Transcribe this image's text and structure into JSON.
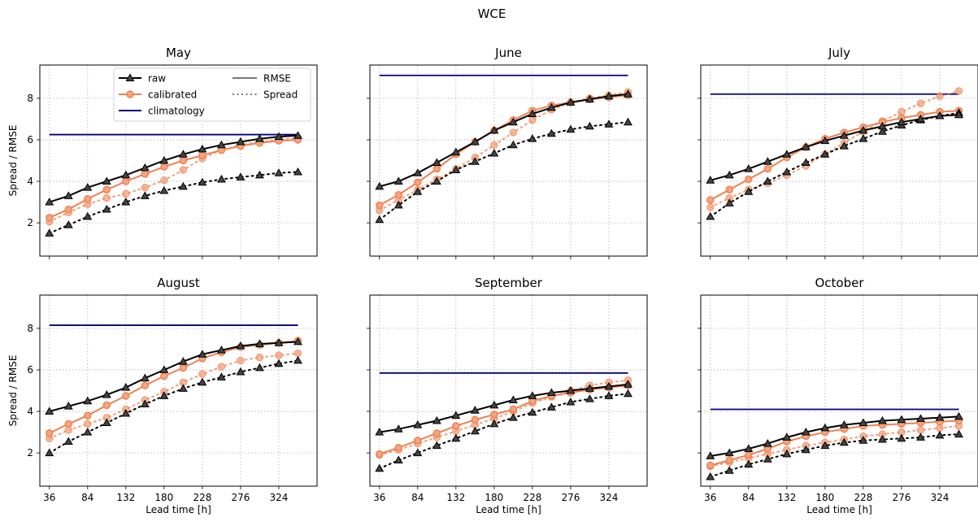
{
  "figure": {
    "suptitle": "WCE"
  },
  "chart_data": {
    "type": "line",
    "suptitle": "WCE",
    "xlabel": "Lead time [h]",
    "ylabel": "Spread / RMSE",
    "x_ticks": [
      36,
      84,
      132,
      180,
      228,
      276,
      324
    ],
    "y_ticks": [
      2,
      4,
      6,
      8
    ],
    "xlim": [
      24,
      372
    ],
    "ylim": [
      0.4,
      9.6
    ],
    "grid": true,
    "legend": {
      "placement": "top-center (first panel)",
      "entries": [
        "raw",
        "calibrated",
        "climatology",
        "RMSE",
        "Spread"
      ]
    },
    "colors": {
      "raw": "#000000",
      "calibrated": "#f07f4f",
      "climatology": "#000080"
    },
    "x": [
      36,
      60,
      84,
      108,
      132,
      156,
      180,
      204,
      228,
      252,
      276,
      300,
      324,
      348
    ],
    "panels": [
      {
        "title": "May",
        "climatology": 6.25,
        "raw_rmse": [
          3.0,
          3.3,
          3.7,
          4.0,
          4.3,
          4.65,
          5.0,
          5.3,
          5.55,
          5.75,
          5.9,
          6.05,
          6.15,
          6.2
        ],
        "raw_spread": [
          1.5,
          1.9,
          2.3,
          2.65,
          3.0,
          3.3,
          3.55,
          3.75,
          3.95,
          4.1,
          4.2,
          4.3,
          4.4,
          4.45
        ],
        "cal_rmse": [
          2.25,
          2.65,
          3.15,
          3.6,
          4.0,
          4.35,
          4.7,
          5.0,
          5.25,
          5.5,
          5.7,
          5.85,
          5.95,
          6.0
        ],
        "cal_spread": [
          2.05,
          2.5,
          2.9,
          3.2,
          3.4,
          3.7,
          4.05,
          4.55,
          5.1,
          5.5,
          5.75,
          5.9,
          6.0,
          6.1
        ]
      },
      {
        "title": "June",
        "climatology": 9.1,
        "raw_rmse": [
          3.75,
          4.0,
          4.4,
          4.9,
          5.4,
          5.9,
          6.45,
          6.85,
          7.25,
          7.55,
          7.8,
          7.95,
          8.1,
          8.2
        ],
        "raw_spread": [
          2.15,
          2.85,
          3.5,
          4.0,
          4.55,
          4.95,
          5.35,
          5.75,
          6.05,
          6.3,
          6.5,
          6.65,
          6.75,
          6.85
        ],
        "cal_rmse": [
          2.85,
          3.35,
          3.95,
          4.6,
          5.3,
          5.9,
          6.45,
          6.95,
          7.4,
          7.65,
          7.8,
          7.95,
          8.05,
          8.15
        ],
        "cal_spread": [
          2.6,
          3.1,
          3.6,
          4.1,
          4.6,
          5.15,
          5.75,
          6.35,
          6.95,
          7.45,
          7.8,
          8.0,
          8.15,
          8.3
        ]
      },
      {
        "title": "July",
        "climatology": 8.2,
        "raw_rmse": [
          4.05,
          4.3,
          4.6,
          4.95,
          5.3,
          5.65,
          5.95,
          6.2,
          6.45,
          6.65,
          6.85,
          7.0,
          7.15,
          7.2
        ],
        "raw_spread": [
          2.3,
          2.95,
          3.5,
          4.0,
          4.45,
          4.9,
          5.3,
          5.7,
          6.05,
          6.4,
          6.7,
          6.95,
          7.15,
          7.3
        ],
        "cal_rmse": [
          3.1,
          3.6,
          4.1,
          4.6,
          5.15,
          5.65,
          6.05,
          6.35,
          6.6,
          6.85,
          7.05,
          7.2,
          7.35,
          7.4
        ],
        "cal_spread": [
          2.75,
          3.2,
          3.6,
          3.9,
          4.3,
          4.75,
          5.3,
          5.85,
          6.4,
          6.9,
          7.35,
          7.75,
          8.1,
          8.35
        ]
      },
      {
        "title": "August",
        "climatology": 8.15,
        "raw_rmse": [
          4.0,
          4.25,
          4.5,
          4.8,
          5.15,
          5.6,
          6.0,
          6.4,
          6.75,
          6.95,
          7.15,
          7.25,
          7.3,
          7.35
        ],
        "raw_spread": [
          2.0,
          2.55,
          3.0,
          3.45,
          3.9,
          4.35,
          4.75,
          5.1,
          5.4,
          5.65,
          5.9,
          6.1,
          6.3,
          6.45
        ],
        "cal_rmse": [
          2.95,
          3.4,
          3.8,
          4.3,
          4.75,
          5.25,
          5.7,
          6.1,
          6.55,
          6.85,
          7.1,
          7.2,
          7.3,
          7.4
        ],
        "cal_spread": [
          2.7,
          3.1,
          3.4,
          3.7,
          4.1,
          4.55,
          4.95,
          5.4,
          5.8,
          6.15,
          6.45,
          6.6,
          6.7,
          6.8
        ]
      },
      {
        "title": "September",
        "climatology": 5.85,
        "raw_rmse": [
          3.0,
          3.15,
          3.35,
          3.55,
          3.8,
          4.05,
          4.3,
          4.55,
          4.75,
          4.9,
          5.0,
          5.1,
          5.2,
          5.3
        ],
        "raw_spread": [
          1.25,
          1.65,
          2.0,
          2.35,
          2.7,
          3.05,
          3.4,
          3.7,
          3.95,
          4.2,
          4.45,
          4.6,
          4.75,
          4.85
        ],
        "cal_rmse": [
          1.95,
          2.25,
          2.6,
          2.95,
          3.3,
          3.6,
          3.85,
          4.1,
          4.5,
          4.75,
          4.9,
          5.05,
          5.15,
          5.25
        ],
        "cal_spread": [
          1.9,
          2.15,
          2.45,
          2.75,
          3.05,
          3.35,
          3.65,
          4.0,
          4.4,
          4.7,
          5.0,
          5.25,
          5.4,
          5.5
        ]
      },
      {
        "title": "October",
        "climatology": 4.1,
        "raw_rmse": [
          1.85,
          2.0,
          2.2,
          2.45,
          2.75,
          3.0,
          3.2,
          3.35,
          3.45,
          3.55,
          3.6,
          3.65,
          3.7,
          3.75
        ],
        "raw_spread": [
          0.85,
          1.15,
          1.45,
          1.7,
          1.95,
          2.15,
          2.35,
          2.5,
          2.6,
          2.65,
          2.7,
          2.75,
          2.85,
          2.9
        ],
        "cal_rmse": [
          1.4,
          1.65,
          1.9,
          2.2,
          2.55,
          2.8,
          3.0,
          3.15,
          3.3,
          3.35,
          3.4,
          3.45,
          3.5,
          3.55
        ],
        "cal_spread": [
          1.35,
          1.55,
          1.75,
          1.95,
          2.15,
          2.35,
          2.5,
          2.65,
          2.8,
          2.9,
          3.0,
          3.1,
          3.2,
          3.3
        ]
      }
    ]
  }
}
